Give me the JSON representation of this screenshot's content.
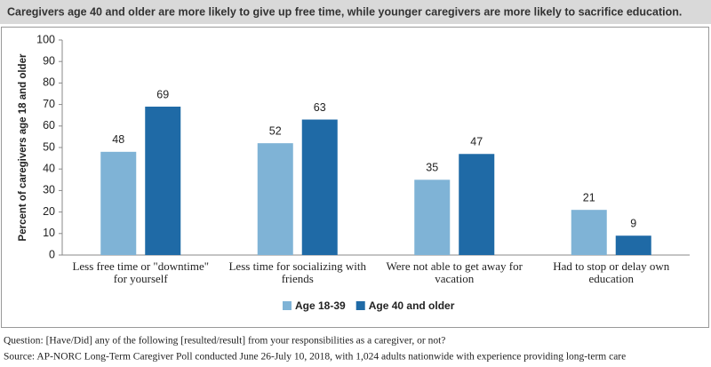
{
  "chart_data": {
    "type": "bar",
    "title": "Caregivers age 40 and older are more likely to give up free time, while younger caregivers are more likely to sacrifice education.",
    "y_label": "Percent of caregivers age 18 and older",
    "categories": [
      "Less free time or \"downtime\" for yourself",
      "Less time for socializing with friends",
      "Were not able to get away for vacation",
      "Had to stop or delay own education"
    ],
    "series": [
      {
        "name": "Age 18-39",
        "color": "#7fb3d6",
        "values": [
          48,
          52,
          35,
          21
        ]
      },
      {
        "name": "Age 40 and older",
        "color": "#1f6aa6",
        "values": [
          69,
          63,
          47,
          9
        ]
      }
    ],
    "ylim": [
      0,
      100
    ],
    "yticks": [
      0,
      10,
      20,
      30,
      40,
      50,
      60,
      70,
      80,
      90,
      100
    ],
    "grid": false,
    "legend": "bottom",
    "notes": [
      "Question: [Have/Did] any of the following [resulted/result] from your responsibilities as a caregiver, or not?",
      "Source: AP-NORC Long-Term Caregiver Poll conducted June 26-July 10, 2018, with 1,024 adults nationwide with experience providing long-term care"
    ]
  }
}
